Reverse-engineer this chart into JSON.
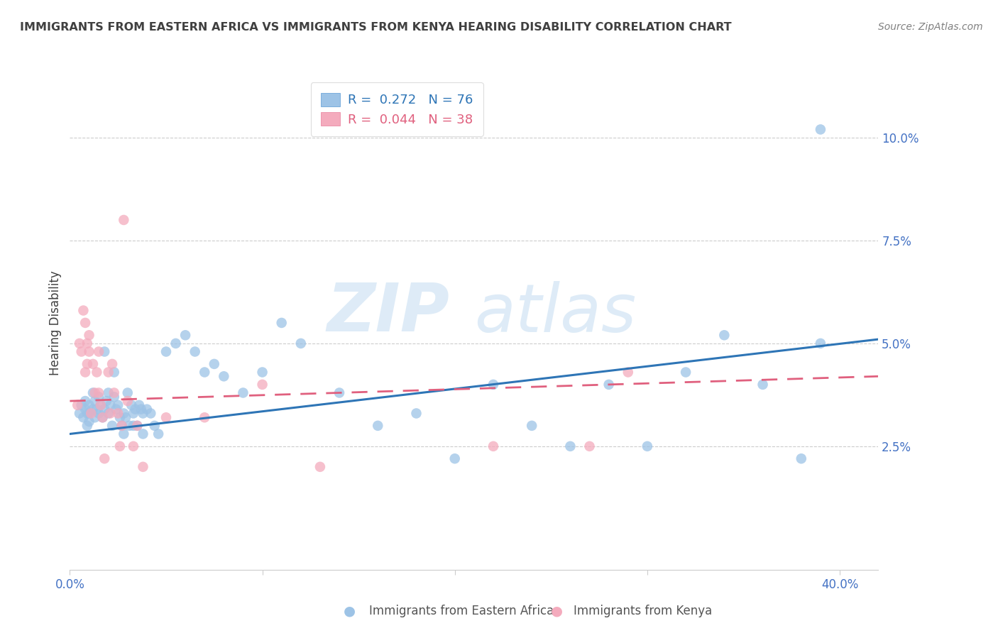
{
  "title": "IMMIGRANTS FROM EASTERN AFRICA VS IMMIGRANTS FROM KENYA HEARING DISABILITY CORRELATION CHART",
  "source": "Source: ZipAtlas.com",
  "ylabel": "Hearing Disability",
  "xlim": [
    0.0,
    0.42
  ],
  "ylim": [
    -0.005,
    0.115
  ],
  "r_eastern": 0.272,
  "n_eastern": 76,
  "r_kenya": 0.044,
  "n_kenya": 38,
  "color_eastern": "#9DC3E6",
  "color_kenya": "#F4ABBD",
  "color_eastern_line": "#2E75B6",
  "color_kenya_line": "#E0607E",
  "watermark_zip": "ZIP",
  "watermark_atlas": "atlas",
  "legend_label_eastern": "Immigrants from Eastern Africa",
  "legend_label_kenya": "Immigrants from Kenya",
  "eastern_x": [
    0.005,
    0.006,
    0.007,
    0.008,
    0.008,
    0.009,
    0.009,
    0.01,
    0.01,
    0.01,
    0.012,
    0.012,
    0.013,
    0.013,
    0.014,
    0.015,
    0.015,
    0.016,
    0.017,
    0.018,
    0.019,
    0.02,
    0.02,
    0.021,
    0.022,
    0.023,
    0.024,
    0.025,
    0.026,
    0.027,
    0.028,
    0.029,
    0.03,
    0.031,
    0.032,
    0.033,
    0.034,
    0.035,
    0.036,
    0.037,
    0.038,
    0.04,
    0.042,
    0.044,
    0.046,
    0.05,
    0.055,
    0.06,
    0.065,
    0.07,
    0.075,
    0.08,
    0.09,
    0.1,
    0.11,
    0.12,
    0.14,
    0.16,
    0.18,
    0.2,
    0.22,
    0.24,
    0.26,
    0.28,
    0.3,
    0.32,
    0.34,
    0.36,
    0.38,
    0.39,
    0.018,
    0.023,
    0.028,
    0.033,
    0.038,
    0.39
  ],
  "eastern_y": [
    0.033,
    0.035,
    0.032,
    0.034,
    0.036,
    0.033,
    0.03,
    0.035,
    0.033,
    0.031,
    0.038,
    0.034,
    0.032,
    0.036,
    0.034,
    0.037,
    0.033,
    0.035,
    0.032,
    0.034,
    0.036,
    0.038,
    0.033,
    0.035,
    0.03,
    0.037,
    0.034,
    0.035,
    0.032,
    0.03,
    0.033,
    0.032,
    0.038,
    0.03,
    0.035,
    0.033,
    0.034,
    0.03,
    0.035,
    0.034,
    0.033,
    0.034,
    0.033,
    0.03,
    0.028,
    0.048,
    0.05,
    0.052,
    0.048,
    0.043,
    0.045,
    0.042,
    0.038,
    0.043,
    0.055,
    0.05,
    0.038,
    0.03,
    0.033,
    0.022,
    0.04,
    0.03,
    0.025,
    0.04,
    0.025,
    0.043,
    0.052,
    0.04,
    0.022,
    0.05,
    0.048,
    0.043,
    0.028,
    0.03,
    0.028,
    0.102
  ],
  "kenya_x": [
    0.004,
    0.005,
    0.006,
    0.007,
    0.008,
    0.008,
    0.009,
    0.009,
    0.01,
    0.01,
    0.011,
    0.012,
    0.013,
    0.014,
    0.015,
    0.015,
    0.016,
    0.017,
    0.018,
    0.02,
    0.021,
    0.022,
    0.023,
    0.025,
    0.026,
    0.027,
    0.028,
    0.03,
    0.033,
    0.035,
    0.038,
    0.05,
    0.07,
    0.1,
    0.13,
    0.22,
    0.27,
    0.29
  ],
  "kenya_y": [
    0.035,
    0.05,
    0.048,
    0.058,
    0.055,
    0.043,
    0.05,
    0.045,
    0.052,
    0.048,
    0.033,
    0.045,
    0.038,
    0.043,
    0.048,
    0.038,
    0.035,
    0.032,
    0.022,
    0.043,
    0.033,
    0.045,
    0.038,
    0.033,
    0.025,
    0.03,
    0.08,
    0.036,
    0.025,
    0.03,
    0.02,
    0.032,
    0.032,
    0.04,
    0.02,
    0.025,
    0.025,
    0.043
  ],
  "eastern_trend_x": [
    0.0,
    0.42
  ],
  "eastern_trend_y": [
    0.028,
    0.051
  ],
  "kenya_trend_x": [
    0.0,
    0.42
  ],
  "kenya_trend_y": [
    0.036,
    0.042
  ],
  "grid_yticks": [
    0.025,
    0.05,
    0.075,
    0.1
  ],
  "right_ytick_labels": [
    "2.5%",
    "5.0%",
    "7.5%",
    "10.0%"
  ],
  "xtick_positions": [
    0.0,
    0.1,
    0.2,
    0.3,
    0.4
  ],
  "title_color": "#404040",
  "source_color": "#808080",
  "axis_color": "#4472C4",
  "tick_color": "#999999",
  "grid_color": "#CCCCCC",
  "spine_color": "#CCCCCC"
}
